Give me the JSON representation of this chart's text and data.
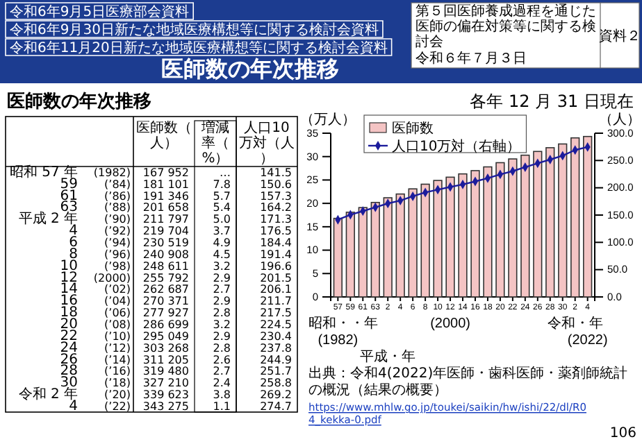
{
  "chart_data": [
    {
      "type": "other",
      "title": "医師数の年次推移",
      "annotations": [
        "令和6年9月5日医療部会資料",
        "令和6年9月30日新たな地域医療構想等に関する検討会資料",
        "令和6年11月20日新たな地域医療構想等に関する検討会資料",
        "第５回医師養成過程を通じた医師の偏在対策等に関する検討会",
        "令和６年７月３日",
        "資料２",
        "106"
      ]
    },
    {
      "type": "other",
      "title": "医師数の年次推移",
      "annotations": [
        "医師数（人）",
        "増減率（%）",
        "人口10万対（人）",
        "昭和 57 年",
        "(1982)",
        "167 952",
        "…",
        "141.5",
        "59",
        "(’84)",
        "181 101",
        "7.8",
        "150.6",
        "61",
        "(’86)",
        "191 346",
        "5.7",
        "157.3",
        "63",
        "(’88)",
        "201 658",
        "5.4",
        "164.2",
        "平成 2 年",
        "(’90)",
        "211 797",
        "5.0",
        "171.3",
        "4",
        "(’92)",
        "219 704",
        "3.7",
        "176.5",
        "6",
        "(’94)",
        "230 519",
        "4.9",
        "184.4",
        "8",
        "(’96)",
        "240 908",
        "4.5",
        "191.4",
        "10",
        "(’98)",
        "248 611",
        "3.2",
        "196.6",
        "12",
        "(2000)",
        "255 792",
        "2.9",
        "201.5",
        "14",
        "(’02)",
        "262 687",
        "2.7",
        "206.1",
        "16",
        "(’04)",
        "270 371",
        "2.9",
        "211.7",
        "18",
        "(’06)",
        "277 927",
        "2.8",
        "217.5",
        "20",
        "(’08)",
        "286 699",
        "3.2",
        "224.5",
        "22",
        "(’10)",
        "295 049",
        "2.9",
        "230.4",
        "24",
        "(’12)",
        "303 268",
        "2.8",
        "237.8",
        "26",
        "(’14)",
        "311 205",
        "2.6",
        "244.9",
        "28",
        "(’16)",
        "319 480",
        "2.7",
        "251.7",
        "30",
        "(’18)",
        "327 210",
        "2.4",
        "258.8",
        "令和 2 年",
        "(’20)",
        "339 623",
        "3.8",
        "269.2",
        "4",
        "(’22)",
        "343 275",
        "1.1",
        "274.7"
      ]
    },
    {
      "type": "bar",
      "subtitle": "各年 12 月 31 日現在",
      "ylabel": "（万人）",
      "y2label": "（人）",
      "categories": [
        "57\n昭和・・年\n(1982)",
        "59",
        "61",
        "63",
        "2\n平成・年",
        "4",
        "6",
        "8",
        "10",
        "12\n(2000)",
        "14",
        "16",
        "18",
        "20",
        "22",
        "24",
        "26",
        "28",
        "30",
        "2\n令和・年",
        "4\n(2022)"
      ],
      "series": [
        {
          "name": "医師数",
          "type": "bar",
          "color": "#f4c4c4",
          "values": [
            16.8,
            18.1,
            19.1,
            20.2,
            21.2,
            22.0,
            23.1,
            24.1,
            24.9,
            25.6,
            26.3,
            27.0,
            27.8,
            28.7,
            29.5,
            30.3,
            31.1,
            31.9,
            32.7,
            34.0,
            34.3
          ]
        },
        {
          "name": "人口10万対（右軸）",
          "type": "line",
          "axis": "y2",
          "color": "#1c1c9c",
          "values": [
            141.5,
            150.6,
            157.3,
            164.2,
            171.3,
            176.5,
            184.4,
            191.4,
            196.6,
            201.5,
            206.1,
            211.7,
            217.5,
            224.5,
            230.4,
            237.8,
            244.9,
            251.7,
            258.8,
            269.2,
            274.7
          ]
        }
      ],
      "ylim": [
        0,
        35
      ],
      "yticks": [
        0,
        5,
        10,
        15,
        20,
        25,
        30,
        35
      ],
      "y2lim": [
        0,
        300
      ],
      "y2ticks": [
        {
          "value": 0,
          "label": "0.0"
        },
        {
          "value": 50,
          "label": "50.0"
        },
        {
          "value": 100,
          "label": "100.0"
        },
        {
          "value": 150,
          "label": "150.0"
        },
        {
          "value": 200,
          "label": "200.0"
        },
        {
          "value": 250,
          "label": "250.0"
        },
        {
          "value": 300,
          "label": "300.0"
        }
      ],
      "legend": "top left",
      "marker": "diamond",
      "line_style": "solid",
      "annotations": [
        "出典：令和4(2022)年医師・歯科医師・薬剤師統計の概況（結果の概要）",
        "https://www.mhlw.go.jp/toukei/saikin/hw/ishi/22/dl/R04_kekka-0.pdf"
      ]
    }
  ]
}
